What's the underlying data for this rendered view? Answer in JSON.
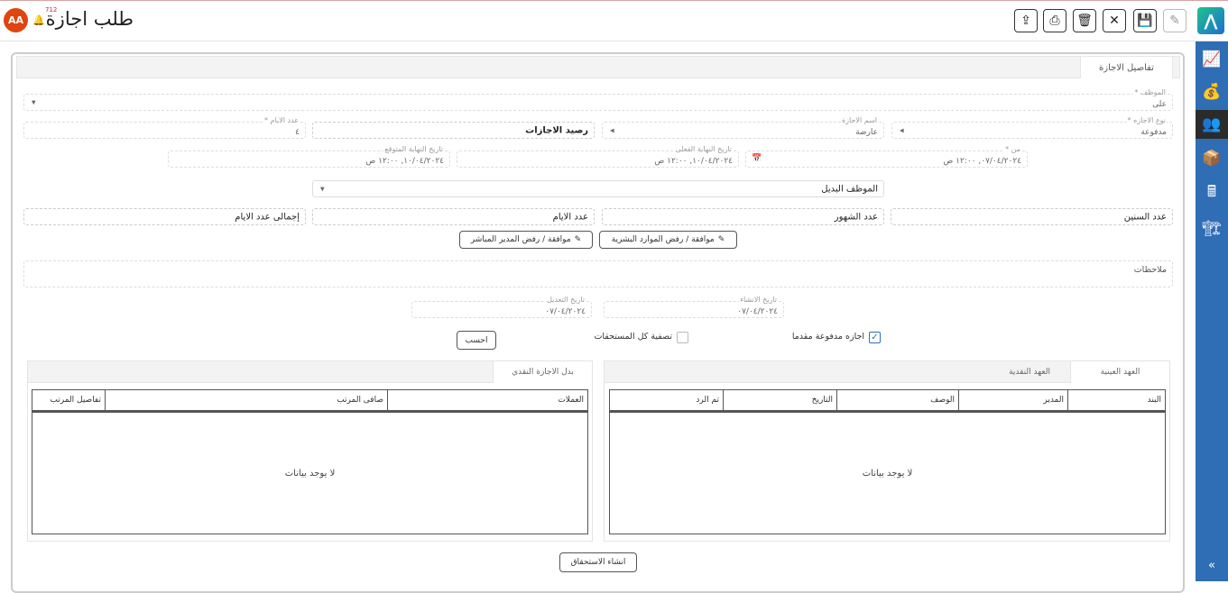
{
  "header": {
    "title": "طلب اجازة",
    "avatar_initials": "AA",
    "notification_count": "712",
    "toolbar": [
      "upload-icon",
      "print-icon",
      "delete-icon",
      "close-icon",
      "save-icon",
      "edit-icon"
    ]
  },
  "sidebar": {
    "items": [
      "reports-icon",
      "finance-icon",
      "hr-icon",
      "warehouse-icon",
      "pos-icon",
      "projects-icon"
    ],
    "active_index": 2,
    "collapse_label": "«",
    "color": "#2f6db5"
  },
  "tab": "تفاصيل الاجازة",
  "form": {
    "employee": {
      "label": "الموظف *",
      "value": "على"
    },
    "leave_type": {
      "label": "نوع الاجازه *",
      "value": "مدفوعة"
    },
    "leave_name": {
      "label": "اسم الاجازة",
      "value": "عارضة"
    },
    "leave_balance": "رصيد الاجازات",
    "days": {
      "label": "عدد الايام *",
      "value": "٤"
    },
    "from": {
      "label": "من *",
      "value": "٠٧/٠٤/٢٠٢٤, ١٢:٠٠ ص"
    },
    "actual_end": {
      "label": "تاريخ النهاية الفعلى",
      "value": "١٠/٠٤/٢٠٢٤, ١٢:٠٠ ص"
    },
    "expected_end": {
      "label": "تاريخ النهاية المتوقع",
      "value": "١٠/٠٤/٢٠٢٤, ١٢:٠٠ ص"
    },
    "substitute": "الموظف البديل",
    "years": "عدد السنين",
    "months": "عدد الشهور",
    "days_box": "عدد الايام",
    "total_days": "إجمالى عدد الايام",
    "hr_approval": "موافقة / رفض الموارد البشرية",
    "manager_approval": "موافقة / رفض المدير المباشر",
    "notes_label": "ملاحظات",
    "created": {
      "label": "تاريخ الانشاء",
      "value": "٠٧/٠٤/٢٠٢٤"
    },
    "modified": {
      "label": "تاريخ التعديل",
      "value": "٠٧/٠٤/٢٠٢٤"
    },
    "paid_upfront": {
      "label": "اجازه مدفوعة مقدما",
      "checked": true
    },
    "settle_all": {
      "label": "تصفية كل المستحقات",
      "checked": false
    },
    "calculate": "احسب"
  },
  "custody_panel": {
    "tabs": [
      "العهد العينية",
      "العهد النقدية"
    ],
    "columns": [
      "البند",
      "المدير",
      "الوصف",
      "التاريخ",
      "تم الرد"
    ],
    "empty": "لا يوجد بيانات"
  },
  "cash_panel": {
    "tabs": [
      "بدل الاجازة النقدي"
    ],
    "columns": [
      "العملات",
      "صافى المرتب",
      "تفاصيل المرتب"
    ],
    "empty": "لا يوجد بيانات"
  },
  "create_entitlement": "انشاء الاستحقاق"
}
